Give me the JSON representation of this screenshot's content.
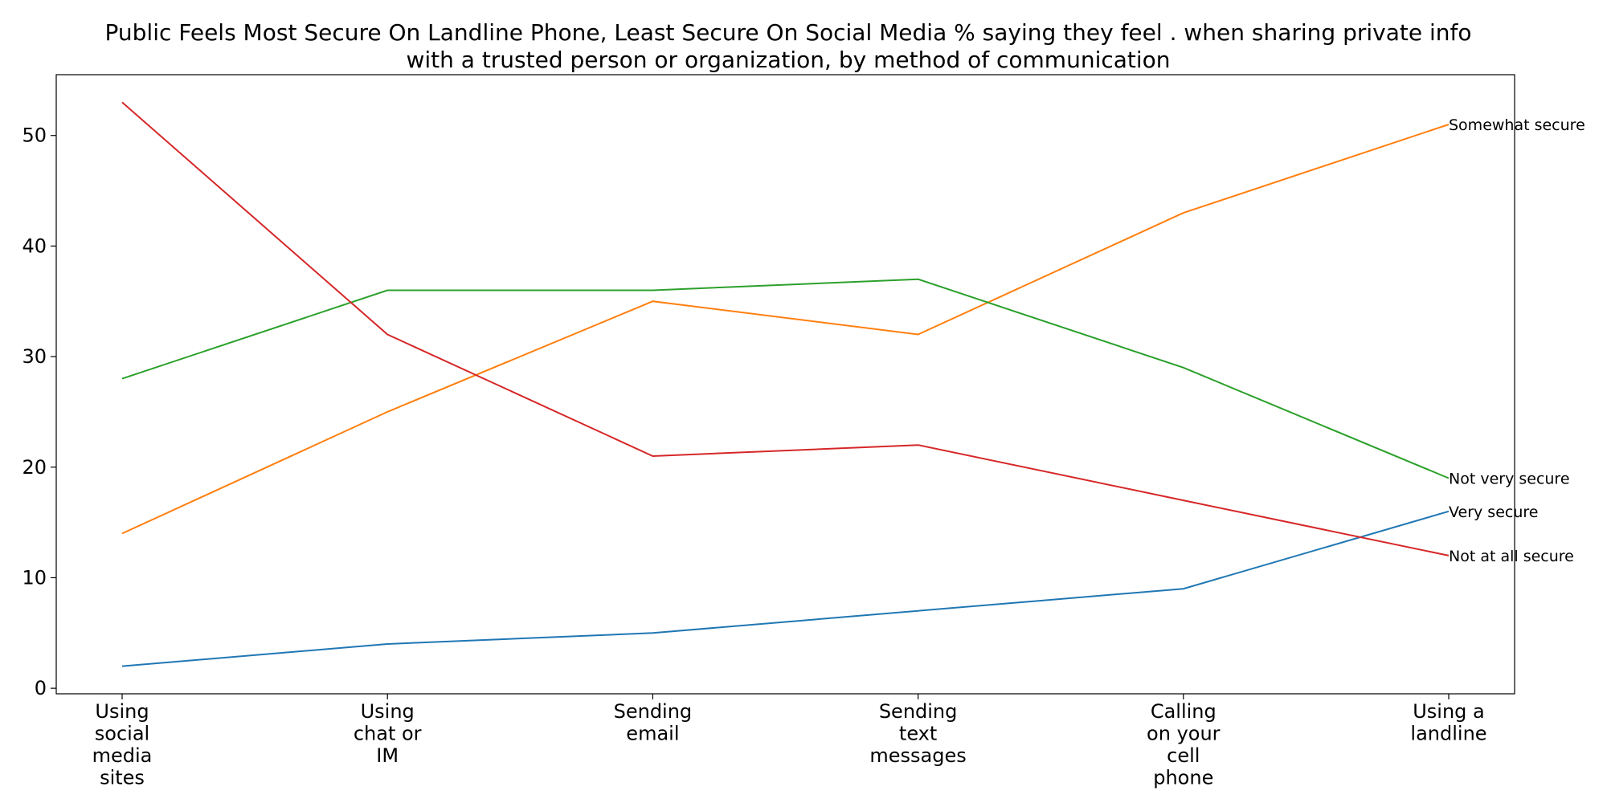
{
  "chart_data": {
    "type": "line",
    "title_lines": [
      "Public Feels Most Secure On Landline Phone, Least Secure On Social Media % saying they feel . when sharing private info",
      "with a trusted person or organization, by method of communication"
    ],
    "xlabel": "",
    "ylabel": "",
    "categories": [
      [
        "Using",
        "social",
        "media",
        "sites"
      ],
      [
        "Using",
        "chat or",
        "IM"
      ],
      [
        "Sending",
        "email"
      ],
      [
        "Sending",
        "text",
        "messages"
      ],
      [
        "Calling",
        "on your",
        "cell",
        "phone"
      ],
      [
        "Using a",
        "landline"
      ]
    ],
    "ylim": [
      -0.5,
      55.5
    ],
    "yticks": [
      0,
      10,
      20,
      30,
      40,
      50
    ],
    "grid": false,
    "legend": "none; series labels at right end of each line",
    "series": [
      {
        "name": "Very secure",
        "color": "#1f77b4",
        "values": [
          2,
          4,
          5,
          7,
          9,
          16
        ]
      },
      {
        "name": "Somewhat secure",
        "color": "#ff7f0e",
        "values": [
          14,
          25,
          35,
          32,
          43,
          51
        ]
      },
      {
        "name": "Not very secure",
        "color": "#2ca02c",
        "values": [
          28,
          36,
          36,
          37,
          29,
          19
        ]
      },
      {
        "name": "Not at all secure",
        "color": "#d62728",
        "values": [
          53,
          32,
          21,
          22,
          17,
          12
        ]
      }
    ]
  }
}
